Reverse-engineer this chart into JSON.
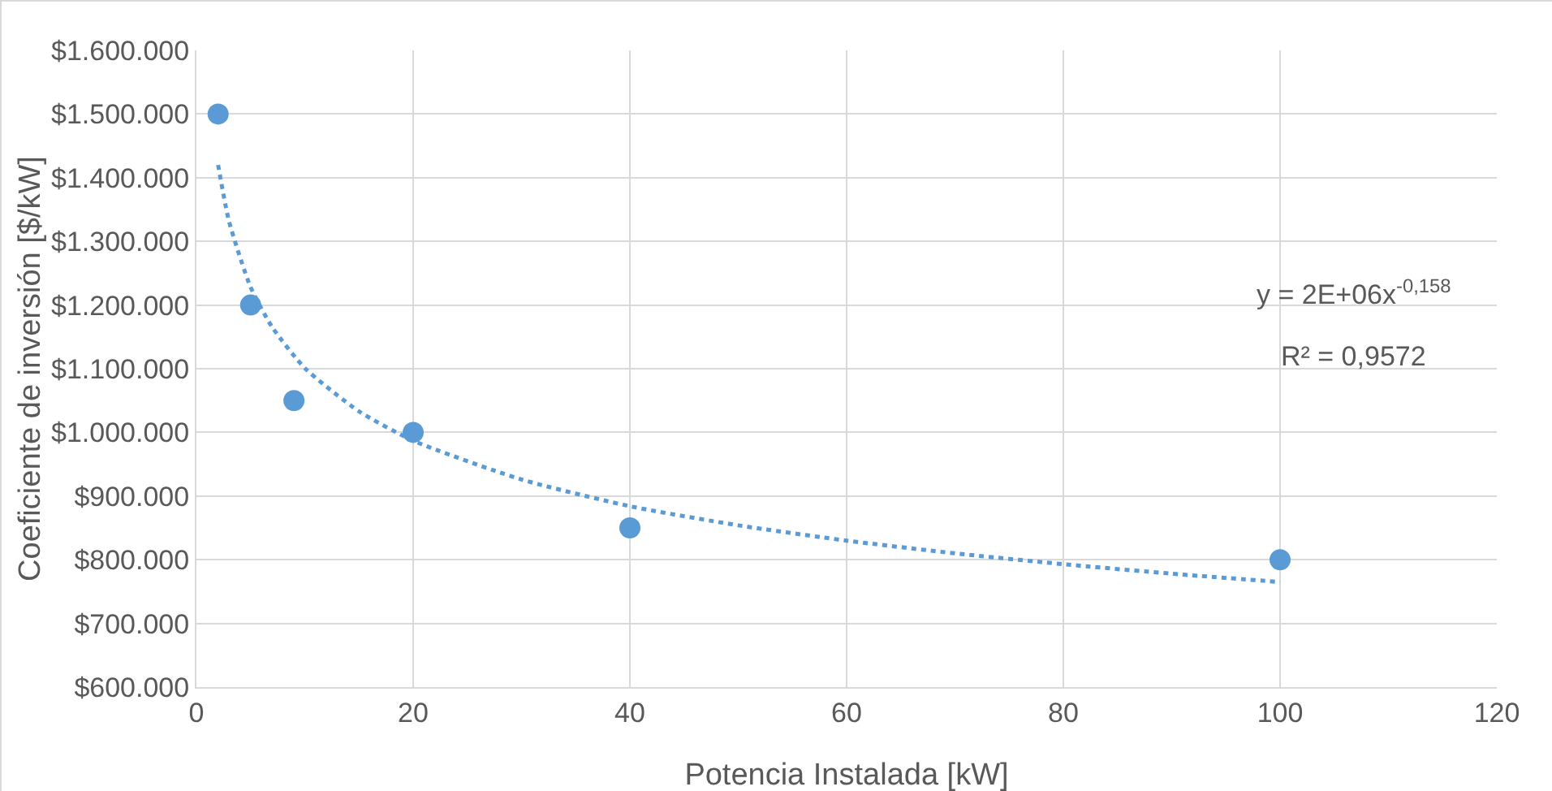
{
  "chart_data": {
    "type": "scatter",
    "xlabel": "Potencia Instalada [kW]",
    "ylabel": "Coeficiente de inversión [$/kW]",
    "x": [
      2,
      5,
      9,
      20,
      40,
      100
    ],
    "series": [
      {
        "color": "#5b9bd5",
        "marker": "circle",
        "values": [
          1500000,
          1200000,
          1050000,
          1000000,
          850000,
          800000
        ]
      },
      {
        "type": "line",
        "color": "#5b9bd5",
        "line_style": "dotted",
        "marker": "none",
        "x": [
          2,
          3,
          5,
          7,
          10,
          15,
          20,
          30,
          40,
          50,
          60,
          70,
          80,
          90,
          100
        ],
        "values": [
          1420000,
          1332000,
          1228000,
          1165000,
          1101000,
          1033000,
          987000,
          926000,
          884000,
          854000,
          830000,
          810000,
          793000,
          778000,
          765000
        ]
      }
    ],
    "annotations": [
      "y = 2E+06x$^{-0,158}$",
      "R² = 0,9572"
    ],
    "xlim": [
      0,
      120
    ],
    "xticks": [
      0,
      20,
      40,
      60,
      80,
      100,
      120
    ],
    "ylim": [
      600000,
      1600000
    ],
    "yticks": [
      {
        "value": 600000,
        "label": "$600.000"
      },
      {
        "value": 700000,
        "label": "$700.000"
      },
      {
        "value": 800000,
        "label": "$800.000"
      },
      {
        "value": 900000,
        "label": "$900.000"
      },
      {
        "value": 1000000,
        "label": "$1.000.000"
      },
      {
        "value": 1100000,
        "label": "$1.100.000"
      },
      {
        "value": 1200000,
        "label": "$1.200.000"
      },
      {
        "value": 1300000,
        "label": "$1.300.000"
      },
      {
        "value": 1400000,
        "label": "$1.400.000"
      },
      {
        "value": 1500000,
        "label": "$1.500.000"
      },
      {
        "value": 1600000,
        "label": "$1.600.000"
      }
    ],
    "grid": true
  }
}
